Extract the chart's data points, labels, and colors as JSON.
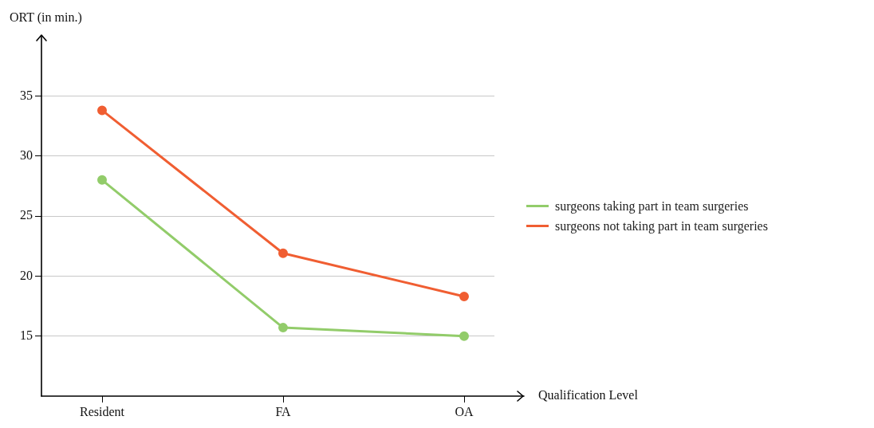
{
  "chart_data": {
    "type": "line",
    "xlabel": "Qualification Level",
    "ylabel": "ORT (in min.)",
    "categories": [
      "Resident",
      "FA",
      "OA"
    ],
    "series": [
      {
        "name": "surgeons taking part in team surgeries",
        "color": "#92cc6a",
        "values": [
          28.0,
          15.7,
          15.0
        ]
      },
      {
        "name": "surgeons not taking part in team surgeries",
        "color": "#f05e32",
        "values": [
          33.8,
          21.9,
          18.3
        ]
      }
    ],
    "ylim": [
      10,
      40
    ],
    "yticks": [
      15,
      20,
      25,
      30,
      35
    ],
    "grid": "y",
    "legend": "right",
    "marker": "circle",
    "line_style": "solid"
  }
}
